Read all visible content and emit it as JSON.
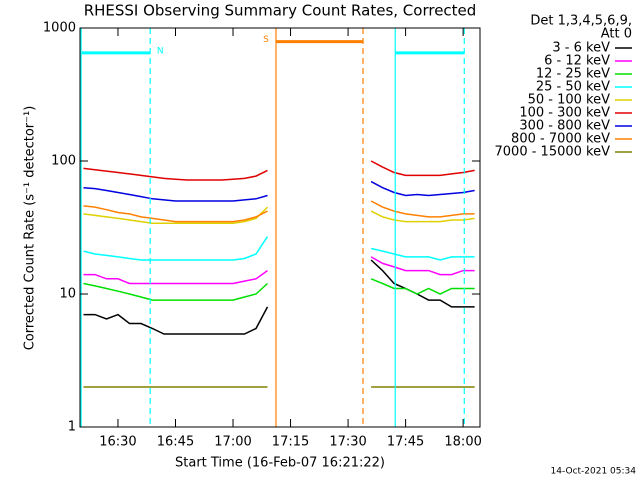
{
  "chart_data": {
    "type": "line",
    "title": "RHESSI Observing Summary Count Rates, Corrected",
    "x_label": "Start Time (16-Feb-07 16:21:22)",
    "y_label": "Corrected Count Rate (s⁻¹ detector⁻¹)",
    "legend_header": [
      "Det 1,3,4,5,6,9,",
      "Att 0"
    ],
    "timestamp": "14-Oct-2021 05:34",
    "log_y": true,
    "xlim": [
      20.1,
      124.4
    ],
    "ylim": [
      1,
      1000
    ],
    "xticks": [
      {
        "value": 30,
        "label": "16:30"
      },
      {
        "value": 45,
        "label": "16:45"
      },
      {
        "value": 60,
        "label": "17:00"
      },
      {
        "value": 75,
        "label": "17:15"
      },
      {
        "value": 90,
        "label": "17:30"
      },
      {
        "value": 105,
        "label": "17:45"
      },
      {
        "value": 120,
        "label": "18:00"
      }
    ],
    "yticks": [
      1,
      10,
      100,
      1000
    ],
    "x": [
      21,
      24,
      27,
      30,
      33,
      36,
      39,
      42,
      45,
      48,
      51,
      54,
      57,
      60,
      63,
      66,
      69,
      82,
      96,
      99,
      102,
      105,
      108,
      111,
      114,
      117,
      120,
      123
    ],
    "series": [
      {
        "name": "3 - 6 keV",
        "color": "#000000",
        "values": [
          7,
          7,
          6.5,
          7,
          6,
          6,
          5.5,
          5,
          5,
          5,
          5,
          5,
          5,
          5,
          5,
          5.5,
          8,
          null,
          18,
          15,
          12,
          11,
          10,
          9,
          9,
          8,
          8,
          8
        ]
      },
      {
        "name": "6 - 12 keV",
        "color": "#ff00ff",
        "values": [
          14,
          14,
          13,
          13,
          12,
          12,
          12,
          12,
          12,
          12,
          12,
          12,
          12,
          12,
          12.5,
          13,
          15,
          null,
          19,
          17,
          16,
          15,
          15,
          15,
          14,
          14,
          15,
          15
        ]
      },
      {
        "name": "12 - 25 keV",
        "color": "#00e000",
        "values": [
          12,
          11.5,
          11,
          10.5,
          10,
          9.5,
          9,
          9,
          9,
          9,
          9,
          9,
          9,
          9,
          9.5,
          10,
          12,
          null,
          13,
          12,
          11,
          11,
          10,
          11,
          10,
          11,
          11,
          11
        ]
      },
      {
        "name": "25 - 50 keV",
        "color": "#00ffff",
        "values": [
          21,
          20,
          19.5,
          19,
          18.5,
          18,
          18,
          18,
          18,
          18,
          18,
          18,
          18,
          18,
          18.5,
          20,
          27,
          null,
          22,
          21,
          20,
          19,
          19,
          19,
          18,
          19,
          19,
          19
        ]
      },
      {
        "name": "50 - 100 keV",
        "color": "#e0d000",
        "values": [
          40,
          39,
          38,
          37,
          36,
          35,
          34,
          34,
          34,
          34,
          34,
          34,
          34,
          34,
          35,
          37,
          45,
          null,
          42,
          38,
          36,
          35,
          35,
          35,
          35,
          36,
          36,
          37
        ]
      },
      {
        "name": "100 - 300 keV",
        "color": "#e00000",
        "values": [
          88,
          86,
          84,
          82,
          80,
          78,
          76,
          74,
          73,
          72,
          72,
          72,
          72,
          73,
          74,
          77,
          85,
          null,
          100,
          90,
          82,
          78,
          78,
          78,
          78,
          80,
          82,
          85
        ]
      },
      {
        "name": "300 - 800 keV",
        "color": "#0000e0",
        "values": [
          63,
          62,
          60,
          58,
          56,
          54,
          52,
          51,
          50,
          50,
          50,
          50,
          50,
          50,
          51,
          52,
          55,
          null,
          70,
          63,
          58,
          55,
          56,
          55,
          56,
          57,
          58,
          60
        ]
      },
      {
        "name": "800 - 7000 keV",
        "color": "#ff8000",
        "values": [
          46,
          45,
          43,
          41,
          40,
          38,
          37,
          36,
          35,
          35,
          35,
          35,
          35,
          35,
          36,
          38,
          42,
          null,
          50,
          45,
          42,
          40,
          39,
          38,
          38,
          39,
          40,
          40
        ]
      },
      {
        "name": "7000 - 15000 keV",
        "color": "#808000",
        "values": [
          2,
          2,
          2,
          2,
          2,
          2,
          2,
          2,
          2,
          2,
          2,
          2,
          2,
          2,
          2,
          2,
          2,
          null,
          2,
          2,
          2,
          2,
          2,
          2,
          2,
          2,
          2,
          2
        ]
      }
    ],
    "vlines": [
      {
        "x": 20.4,
        "color": "#00ffff",
        "dashed": false
      },
      {
        "x": 38.4,
        "color": "#00ffff",
        "dashed": true
      },
      {
        "x": 71.2,
        "color": "#ff8000",
        "dashed": false
      },
      {
        "x": 93.9,
        "color": "#ff8000",
        "dashed": true
      },
      {
        "x": 102.3,
        "color": "#00ffff",
        "dashed": false
      },
      {
        "x": 120.3,
        "color": "#00ffff",
        "dashed": true
      }
    ],
    "flag_bars": [
      {
        "label": "N",
        "x": [
          20.6,
          38.4
        ],
        "y": 650,
        "color": "#00ffff"
      },
      {
        "label": "S",
        "x": [
          71.2,
          93.9
        ],
        "y": 790,
        "color": "#ff8000"
      },
      {
        "x": [
          102.3,
          120.3
        ],
        "y": 650,
        "color": "#00ffff"
      }
    ]
  }
}
